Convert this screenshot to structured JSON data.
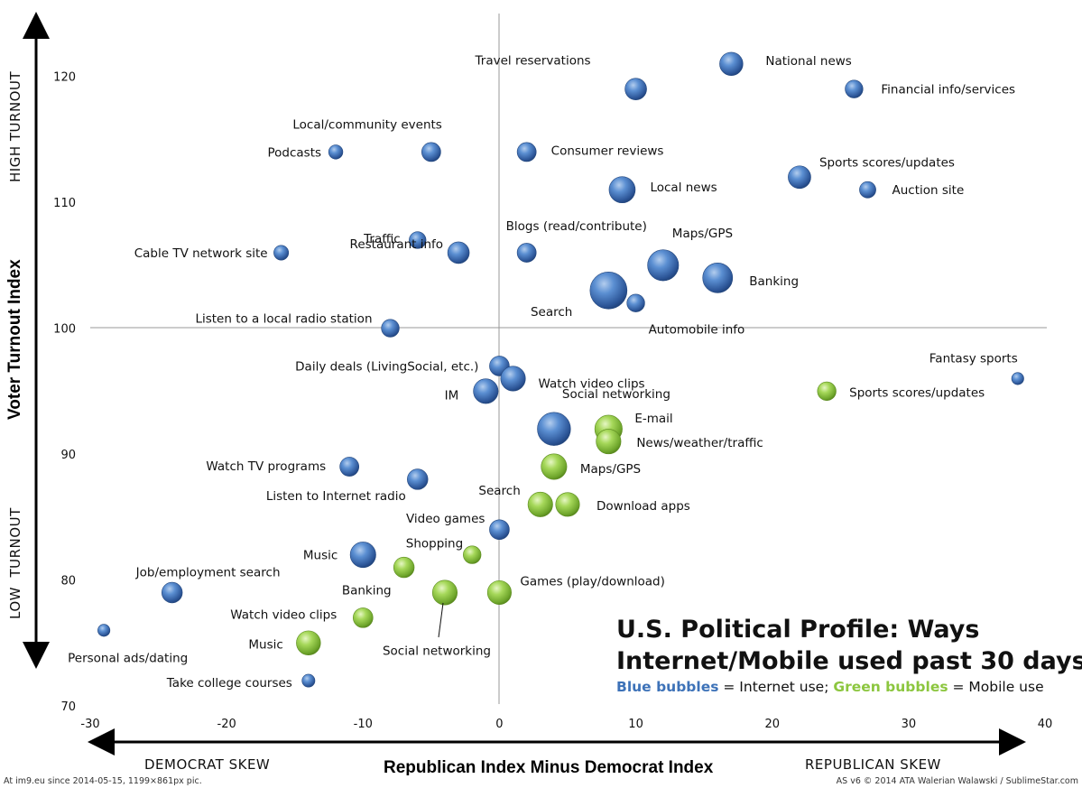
{
  "chart_data": {
    "type": "bubble",
    "title": "U.S. Political Profile: Ways Internet/Mobile used past 30 days",
    "title_line1": "U.S. Political Profile: Ways",
    "title_line2": "Internet/Mobile used past 30 days",
    "subtitle": {
      "blue_term": "Blue bubbles",
      "blue_text": " = Internet use; ",
      "green_term": "Green bubbles",
      "green_text": " = Mobile use"
    },
    "xlabel": "Republican Index Minus Democrat Index",
    "ylabel": "Voter Turnout Index",
    "x_left_annotation": "DEMOCRAT SKEW",
    "x_right_annotation": "REPUBLICAN SKEW",
    "y_top_annotation": "HIGH TURNOUT",
    "y_bottom_annotation": "LOW  TURNOUT",
    "xlim": [
      -30,
      40
    ],
    "ylim": [
      70,
      125
    ],
    "x_ticks": [
      "-30",
      "-20",
      "-10",
      "0",
      "10",
      "20",
      "30",
      "40"
    ],
    "y_ticks": [
      "70",
      "80",
      "90",
      "100",
      "110",
      "120"
    ],
    "colors": {
      "internet": "#3d72b8",
      "mobile": "#8cc63f"
    },
    "series": [
      {
        "name": "Internet use",
        "color": "#3d72b8",
        "points": [
          {
            "label": "National news",
            "x": 17,
            "y": 121,
            "size": 3.0
          },
          {
            "label": "Travel reservations",
            "x": 10,
            "y": 119,
            "size": 2.5
          },
          {
            "label": "Financial info/services",
            "x": 26,
            "y": 119,
            "size": 1.5
          },
          {
            "label": "Local/community events",
            "x": -5,
            "y": 114,
            "size": 1.8
          },
          {
            "label": "Podcasts",
            "x": -12,
            "y": 114,
            "size": 0.8
          },
          {
            "label": "Consumer reviews",
            "x": 2,
            "y": 114,
            "size": 1.8
          },
          {
            "label": "Local news",
            "x": 9,
            "y": 111,
            "size": 4.0
          },
          {
            "label": "Sports scores/updates",
            "x": 22,
            "y": 112,
            "size": 2.8
          },
          {
            "label": "Auction site",
            "x": 27,
            "y": 111,
            "size": 1.2
          },
          {
            "label": "Traffic",
            "x": -6,
            "y": 107,
            "size": 1.3
          },
          {
            "label": "Cable TV network site",
            "x": -16,
            "y": 106,
            "size": 0.9
          },
          {
            "label": "Restaurant info",
            "x": -3,
            "y": 106,
            "size": 2.5
          },
          {
            "label": "Blogs (read/contribute)",
            "x": 2,
            "y": 106,
            "size": 1.8
          },
          {
            "label": "Maps/GPS",
            "x": 12,
            "y": 105,
            "size": 6.0
          },
          {
            "label": "Banking",
            "x": 16,
            "y": 104,
            "size": 5.5
          },
          {
            "label": "Search",
            "x": 8,
            "y": 103,
            "size": 9.0
          },
          {
            "label": "Automobile info",
            "x": 10,
            "y": 102,
            "size": 1.5
          },
          {
            "label": "Listen to a local radio station",
            "x": -8,
            "y": 100,
            "size": 1.5
          },
          {
            "label": "Fantasy sports",
            "x": 38,
            "y": 96,
            "size": 0.5
          },
          {
            "label": "Daily deals (LivingSocial, etc.)",
            "x": 0,
            "y": 97,
            "size": 2.0
          },
          {
            "label": "Watch video clips",
            "x": 1,
            "y": 96,
            "size": 3.5
          },
          {
            "label": "IM",
            "x": -1,
            "y": 95,
            "size": 3.5
          },
          {
            "label": "Social networking",
            "x": 4,
            "y": 92,
            "size": 7.0
          },
          {
            "label": "Watch TV programs",
            "x": -11,
            "y": 89,
            "size": 1.8
          },
          {
            "label": "Listen to Internet radio",
            "x": -6,
            "y": 88,
            "size": 2.2
          },
          {
            "label": "Video games",
            "x": 0,
            "y": 84,
            "size": 2.0
          },
          {
            "label": "Music",
            "x": -10,
            "y": 82,
            "size": 3.8
          },
          {
            "label": "Job/employment search",
            "x": -24,
            "y": 79,
            "size": 2.2
          },
          {
            "label": "Personal ads/dating",
            "x": -29,
            "y": 76,
            "size": 0.5
          },
          {
            "label": "Take college courses",
            "x": -14,
            "y": 72,
            "size": 0.6
          }
        ]
      },
      {
        "name": "Mobile use",
        "color": "#8cc63f",
        "points": [
          {
            "label": "Sports scores/updates",
            "x": 24,
            "y": 95,
            "size": 1.7
          },
          {
            "label": "E-mail",
            "x": 8,
            "y": 92,
            "size": 4.5
          },
          {
            "label": "News/weather/traffic",
            "x": 8,
            "y": 91,
            "size": 3.5
          },
          {
            "label": "Maps/GPS",
            "x": 4,
            "y": 89,
            "size": 3.8
          },
          {
            "label": "Search",
            "x": 3,
            "y": 86,
            "size": 3.5
          },
          {
            "label": "Download apps",
            "x": 5,
            "y": 86,
            "size": 3.2
          },
          {
            "label": "Shopping",
            "x": -2,
            "y": 82,
            "size": 1.5
          },
          {
            "label": "Banking",
            "x": -7,
            "y": 81,
            "size": 2.2
          },
          {
            "label": "Social networking",
            "x": -4,
            "y": 79,
            "size": 3.5
          },
          {
            "label": "Games (play/download)",
            "x": 0,
            "y": 79,
            "size": 3.2
          },
          {
            "label": "Watch video clips",
            "x": -10,
            "y": 77,
            "size": 2.0
          },
          {
            "label": "Music",
            "x": -14,
            "y": 75,
            "size": 3.3
          }
        ]
      }
    ]
  },
  "footer": {
    "left": "At im9.eu  since 2014-05-15, 1199×861px pic.",
    "right": "AS v6 © 2014 ATA Walerian Walawski / SublimeStar.com"
  }
}
